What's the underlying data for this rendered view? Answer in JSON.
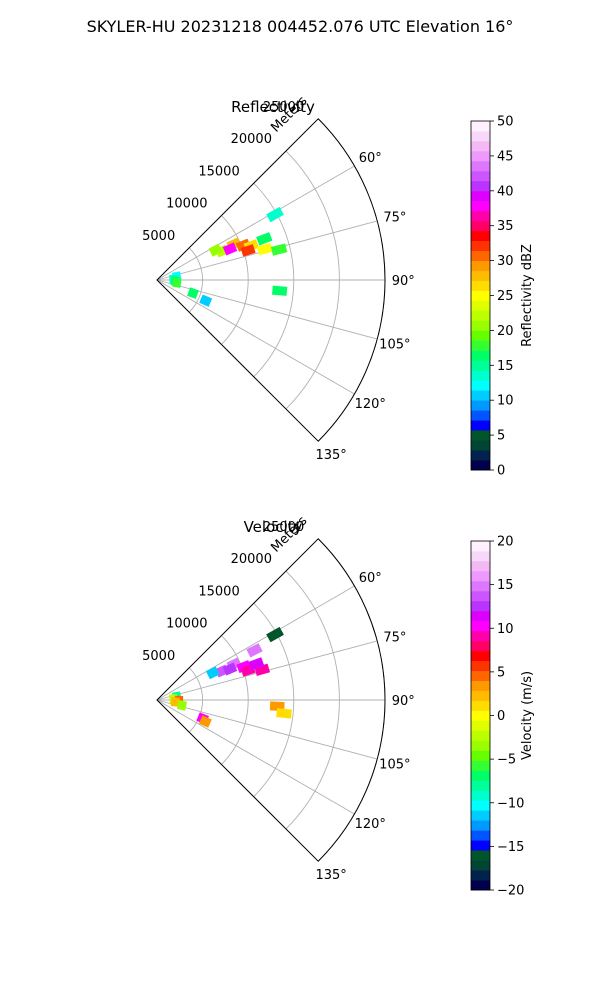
{
  "figure": {
    "suptitle": "SKYLER-HU  20231218  004452.076 UTC Elevation 16°"
  },
  "chart_data": [
    {
      "type": "heatmap",
      "projection": "polar-sector",
      "title": "Reflectivity",
      "range_axis_label": "Meters",
      "range_ticks": [
        5000,
        10000,
        15000,
        20000,
        25000
      ],
      "range_tick_labels": [
        "5000",
        "10000",
        "15000",
        "20000",
        "25000"
      ],
      "range_max": 25000,
      "azimuth_range_deg": [
        45,
        135
      ],
      "azimuth_ticks_deg": [
        60,
        75,
        90,
        105,
        120,
        135
      ],
      "azimuth_tick_labels": [
        "60°",
        "75°",
        "90°",
        "105°",
        "120°",
        "135°"
      ],
      "grid": true,
      "colorbar": {
        "label": "Reflectivity dBZ",
        "min": 0,
        "max": 50,
        "ticks": [
          0,
          5,
          10,
          15,
          20,
          25,
          30,
          35,
          40,
          45,
          50
        ],
        "tick_labels": [
          "0",
          "5",
          "10",
          "15",
          "20",
          "25",
          "30",
          "35",
          "40",
          "45",
          "50"
        ],
        "colors": [
          "#00004c",
          "#00224c",
          "#004433",
          "#00552a",
          "#0000ff",
          "#0055ff",
          "#0099ff",
          "#00ccff",
          "#00ffff",
          "#00ffcc",
          "#00ff99",
          "#00ff66",
          "#33ff33",
          "#66ff00",
          "#99ff00",
          "#bbff00",
          "#ddff00",
          "#ffff00",
          "#ffdd00",
          "#ffbb00",
          "#ff9900",
          "#ff6600",
          "#ff3300",
          "#ff0000",
          "#ff0066",
          "#ff00aa",
          "#ff00ff",
          "#dd00ff",
          "#bb33ff",
          "#cc55ff",
          "#dd77ff",
          "#ee99ff",
          "#f4b8f4",
          "#f8d8f8",
          "#fff0ff"
        ]
      },
      "echoes": [
        {
          "az": 66,
          "r": 7800,
          "value": 22
        },
        {
          "az": 65,
          "r": 9300,
          "value": 28
        },
        {
          "az": 67,
          "r": 8700,
          "value": 38
        },
        {
          "az": 68,
          "r": 10200,
          "value": 30
        },
        {
          "az": 70,
          "r": 11000,
          "value": 26
        },
        {
          "az": 74,
          "r": 12300,
          "value": 25
        },
        {
          "az": 76,
          "r": 13800,
          "value": 18
        },
        {
          "az": 72,
          "r": 10500,
          "value": 32
        },
        {
          "az": 63,
          "r": 7200,
          "value": 20
        },
        {
          "az": 69,
          "r": 12600,
          "value": 16
        },
        {
          "az": 61,
          "r": 14800,
          "value": 14
        },
        {
          "az": 95,
          "r": 13500,
          "value": 16
        },
        {
          "az": 80,
          "r": 2200,
          "value": 12
        },
        {
          "az": 88,
          "r": 1800,
          "value": 14
        },
        {
          "az": 93,
          "r": 2000,
          "value": 16
        },
        {
          "az": 98,
          "r": 2200,
          "value": 18
        },
        {
          "az": 113,
          "r": 5800,
          "value": 10
        },
        {
          "az": 110,
          "r": 4200,
          "value": 16
        }
      ]
    },
    {
      "type": "heatmap",
      "projection": "polar-sector",
      "title": "Velocity",
      "range_axis_label": "Meters",
      "range_ticks": [
        5000,
        10000,
        15000,
        20000,
        25000
      ],
      "range_tick_labels": [
        "5000",
        "10000",
        "15000",
        "20000",
        "25000"
      ],
      "range_max": 25000,
      "azimuth_range_deg": [
        45,
        135
      ],
      "azimuth_ticks_deg": [
        60,
        75,
        90,
        105,
        120,
        135
      ],
      "azimuth_tick_labels": [
        "60°",
        "75°",
        "90°",
        "105°",
        "120°",
        "135°"
      ],
      "grid": true,
      "colorbar": {
        "label": "Velocity (m/s)",
        "min": -20,
        "max": 20,
        "ticks": [
          -20,
          -15,
          -10,
          -5,
          0,
          5,
          10,
          15,
          20
        ],
        "tick_labels": [
          "−20",
          "−15",
          "−10",
          "−5",
          "0",
          "5",
          "10",
          "15",
          "20"
        ],
        "colors": [
          "#00004c",
          "#00224c",
          "#004433",
          "#00552a",
          "#0000ff",
          "#0055ff",
          "#0099ff",
          "#00ccff",
          "#00ffff",
          "#00ffcc",
          "#00ff99",
          "#00ff66",
          "#33ff33",
          "#66ff00",
          "#99ff00",
          "#bbff00",
          "#ddff00",
          "#ffff00",
          "#ffdd00",
          "#ffbb00",
          "#ff9900",
          "#ff6600",
          "#ff3300",
          "#ff0000",
          "#ff0066",
          "#ff00aa",
          "#ff00ff",
          "#dd00ff",
          "#bb33ff",
          "#cc55ff",
          "#dd77ff",
          "#ee99ff",
          "#f4b8f4",
          "#f8d8f8",
          "#fff0ff"
        ]
      },
      "echoes": [
        {
          "az": 66,
          "r": 7800,
          "value": 14
        },
        {
          "az": 64,
          "r": 6800,
          "value": -12
        },
        {
          "az": 65,
          "r": 9300,
          "value": 15
        },
        {
          "az": 67,
          "r": 8700,
          "value": 13
        },
        {
          "az": 69,
          "r": 10200,
          "value": 10
        },
        {
          "az": 72,
          "r": 10500,
          "value": 9
        },
        {
          "az": 74,
          "r": 12000,
          "value": 9
        },
        {
          "az": 70,
          "r": 11600,
          "value": 11
        },
        {
          "az": 63,
          "r": 12000,
          "value": 15
        },
        {
          "az": 61,
          "r": 14800,
          "value": -16
        },
        {
          "az": 93,
          "r": 13200,
          "value": 3
        },
        {
          "az": 96,
          "r": 14000,
          "value": 1
        },
        {
          "az": 80,
          "r": 2200,
          "value": -8
        },
        {
          "az": 86,
          "r": 1800,
          "value": -2
        },
        {
          "az": 91,
          "r": 2400,
          "value": 5
        },
        {
          "az": 96,
          "r": 2000,
          "value": 2
        },
        {
          "az": 102,
          "r": 2800,
          "value": -3
        },
        {
          "az": 112,
          "r": 5400,
          "value": 10
        },
        {
          "az": 114,
          "r": 5800,
          "value": 3
        }
      ]
    }
  ]
}
